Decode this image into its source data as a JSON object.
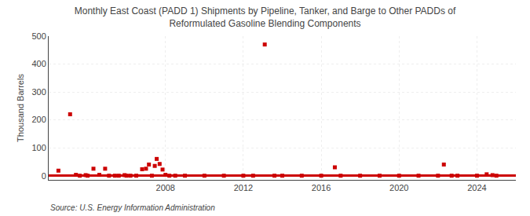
{
  "chart_data": {
    "type": "scatter",
    "title": "Monthly East Coast (PADD 1) Shipments by Pipeline, Tanker, and Barge to Other PADDs of\nReformulated Gasoline Blending Components",
    "ylabel": "Thousand Barrels",
    "annotations": [
      "Source: U.S. Energy Information Administration"
    ],
    "x": [
      2002.5,
      2003.1,
      2003.4,
      2003.6,
      2003.9,
      2004.0,
      2004.3,
      2004.6,
      2004.9,
      2005.1,
      2005.4,
      2005.6,
      2005.9,
      2006.0,
      2006.2,
      2006.5,
      2006.8,
      2007.0,
      2007.15,
      2007.3,
      2007.45,
      2007.55,
      2007.7,
      2007.85,
      2008.0,
      2008.2,
      2008.5,
      2009.0,
      2010.0,
      2011.0,
      2012.0,
      2012.5,
      2013.1,
      2013.6,
      2014.0,
      2015.0,
      2016.0,
      2016.7,
      2017.0,
      2018.0,
      2019.0,
      2020.0,
      2021.0,
      2022.0,
      2022.3,
      2022.7,
      2023.0,
      2024.0,
      2024.5,
      2024.8,
      2025.0
    ],
    "values": [
      18,
      220,
      3,
      0,
      2,
      0,
      25,
      3,
      25,
      0,
      0,
      0,
      2,
      0,
      0,
      0,
      23,
      25,
      40,
      0,
      35,
      60,
      42,
      22,
      3,
      0,
      0,
      0,
      0,
      0,
      0,
      0,
      470,
      0,
      0,
      0,
      0,
      30,
      0,
      0,
      0,
      0,
      0,
      0,
      40,
      0,
      0,
      0,
      5,
      2,
      0
    ],
    "color": "#cc0000",
    "marker": "square",
    "xlim": [
      2002.0,
      2026.0
    ],
    "ylim": [
      -15,
      500
    ],
    "xticks": [
      2008,
      2012,
      2016,
      2020,
      2024
    ],
    "yticks": [
      0,
      100,
      200,
      300,
      400,
      500
    ],
    "grid": true
  }
}
